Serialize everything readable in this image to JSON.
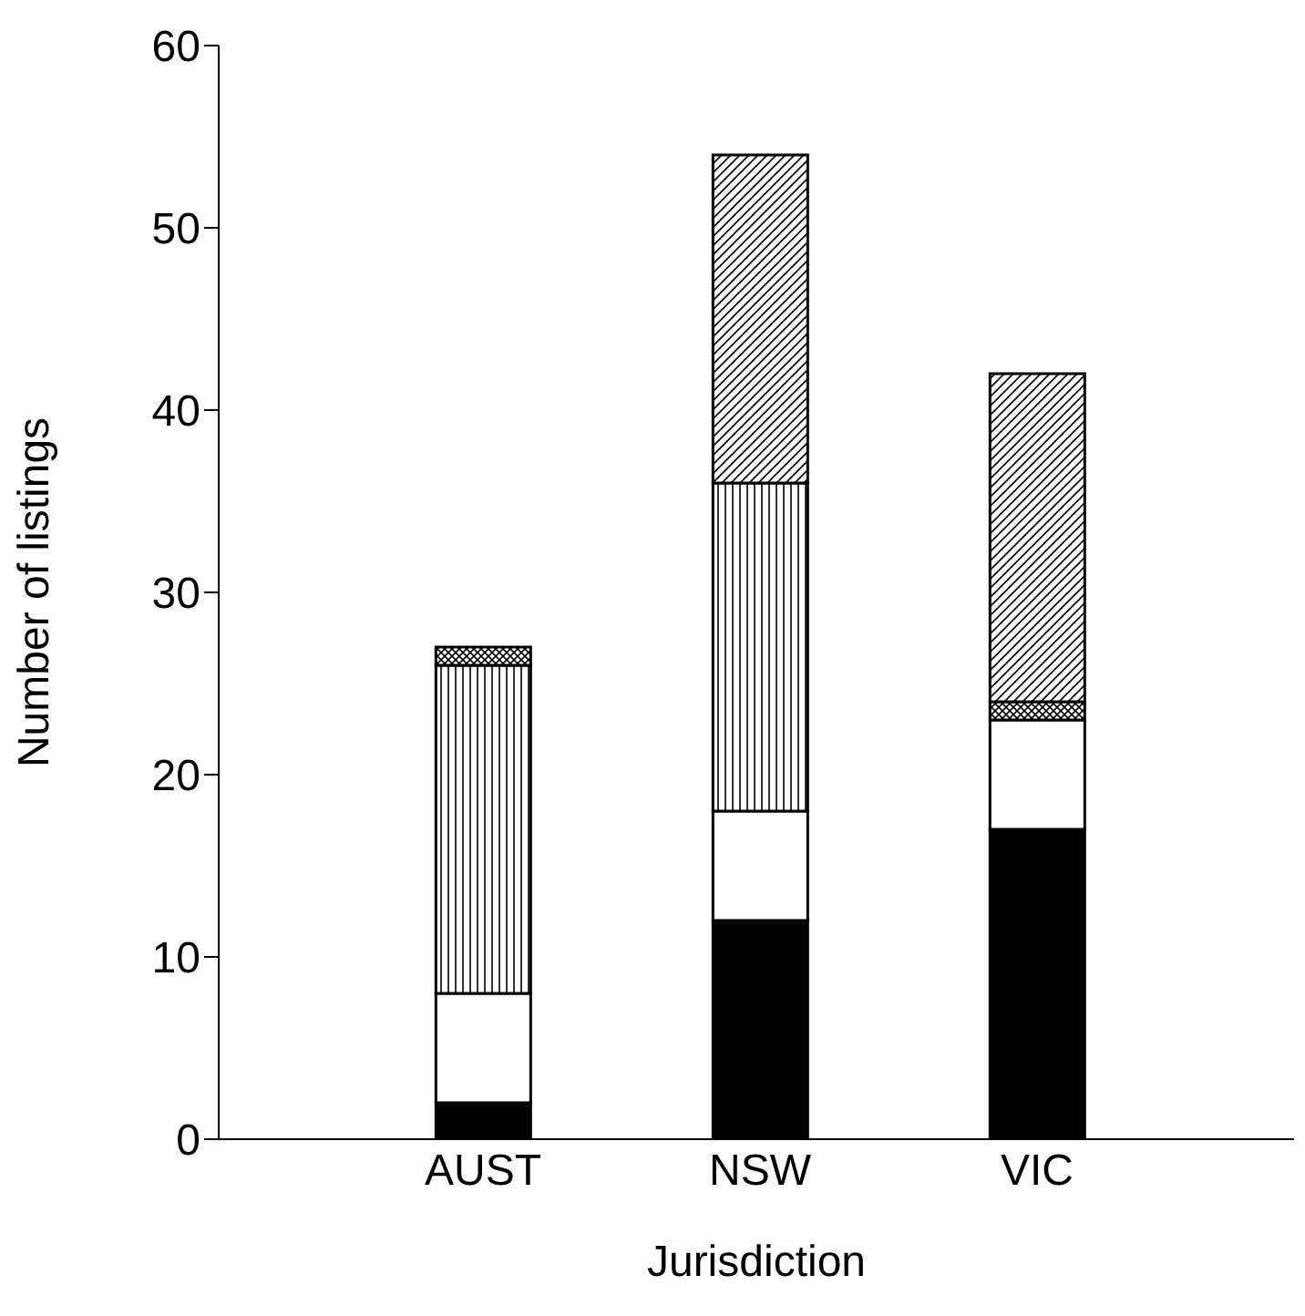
{
  "chart_data": {
    "type": "bar",
    "stacked": true,
    "xlabel": "Jurisdiction",
    "ylabel": "Number of listings",
    "categories": [
      "AUST",
      "NSW",
      "VIC"
    ],
    "series": [
      {
        "color": "#000000",
        "values": [
          2,
          12,
          17
        ]
      },
      {
        "color": "#ffffff",
        "values": [
          6,
          6,
          6
        ]
      },
      {
        "color": "#000000",
        "values": [
          18,
          18,
          0
        ]
      },
      {
        "color": "#000000",
        "values": [
          1,
          0,
          1
        ]
      },
      {
        "color": "#000000",
        "values": [
          0,
          18,
          18
        ]
      }
    ],
    "ylim": [
      0,
      60
    ],
    "yticks": [
      0,
      10,
      20,
      30,
      40,
      50,
      60
    ],
    "grid": false,
    "legend": false
  }
}
